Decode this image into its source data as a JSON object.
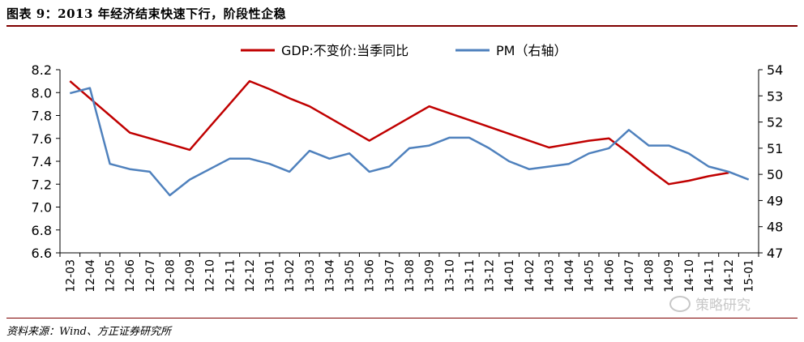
{
  "title": "图表 9：2013 年经济结束快速下行，阶段性企稳",
  "source": "资料来源：Wind、方正证券研究所",
  "watermark": "策略研究",
  "chart_data": {
    "type": "line",
    "categories": [
      "12-03",
      "12-04",
      "12-05",
      "12-06",
      "12-07",
      "12-08",
      "12-09",
      "12-10",
      "12-11",
      "12-12",
      "13-01",
      "13-02",
      "13-03",
      "13-04",
      "13-05",
      "13-06",
      "13-07",
      "13-08",
      "13-09",
      "13-10",
      "13-11",
      "13-12",
      "14-01",
      "14-02",
      "14-03",
      "14-04",
      "14-05",
      "14-06",
      "14-07",
      "14-08",
      "14-09",
      "14-10",
      "14-11",
      "14-12",
      "15-01"
    ],
    "series": [
      {
        "name": "GDP:不变价:当季同比",
        "color": "#c00000",
        "axis": "left",
        "values": [
          8.1,
          7.95,
          7.8,
          7.65,
          7.6,
          7.55,
          7.5,
          7.7,
          7.9,
          8.1,
          8.03,
          7.95,
          7.88,
          7.78,
          7.68,
          7.58,
          7.68,
          7.78,
          7.88,
          7.82,
          7.76,
          7.7,
          7.64,
          7.58,
          7.52,
          7.55,
          7.58,
          7.6,
          7.47,
          7.33,
          7.2,
          7.23,
          7.27,
          7.3,
          null
        ]
      },
      {
        "name": "PM（右轴）",
        "color": "#4f81bd",
        "axis": "right",
        "values": [
          53.1,
          53.3,
          50.4,
          50.2,
          50.1,
          49.2,
          49.8,
          50.2,
          50.6,
          50.6,
          50.4,
          50.1,
          50.9,
          50.6,
          50.8,
          50.1,
          50.3,
          51.0,
          51.1,
          51.4,
          51.4,
          51.0,
          50.5,
          50.2,
          50.3,
          50.4,
          50.8,
          51.0,
          51.7,
          51.1,
          51.1,
          50.8,
          50.3,
          50.1,
          49.8
        ]
      }
    ],
    "yleft": {
      "range": [
        6.6,
        8.2
      ],
      "ticks": [
        "6.6",
        "6.8",
        "7.0",
        "7.2",
        "7.4",
        "7.6",
        "7.8",
        "8.0",
        "8.2"
      ]
    },
    "yright": {
      "range": [
        47,
        54
      ],
      "ticks": [
        "47",
        "48",
        "49",
        "50",
        "51",
        "52",
        "53",
        "54"
      ]
    },
    "legend": "top-center",
    "grid": false
  }
}
